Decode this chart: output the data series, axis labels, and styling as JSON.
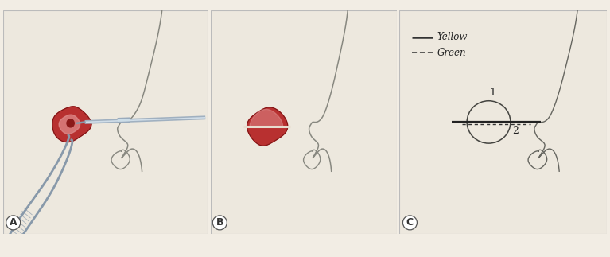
{
  "bg_color": "#f2ede4",
  "panel_bg": "#ede8de",
  "border_color": "#bbbbbb",
  "fig_width": 7.67,
  "fig_height": 3.23,
  "label_A": "A",
  "label_B": "B",
  "label_C": "C",
  "legend_solid": "Yellow",
  "legend_dash": "Green",
  "tissue_red_dark": "#b83030",
  "tissue_red_mid": "#c84040",
  "tissue_red_light": "#d86060",
  "tissue_pink": "#e09090",
  "nose_line_color": "#888880",
  "scalpel_body": "#a0b0c0",
  "scalpel_highlight": "#d0dde8",
  "forceps_color": "#8899aa",
  "line_color": "#333333"
}
